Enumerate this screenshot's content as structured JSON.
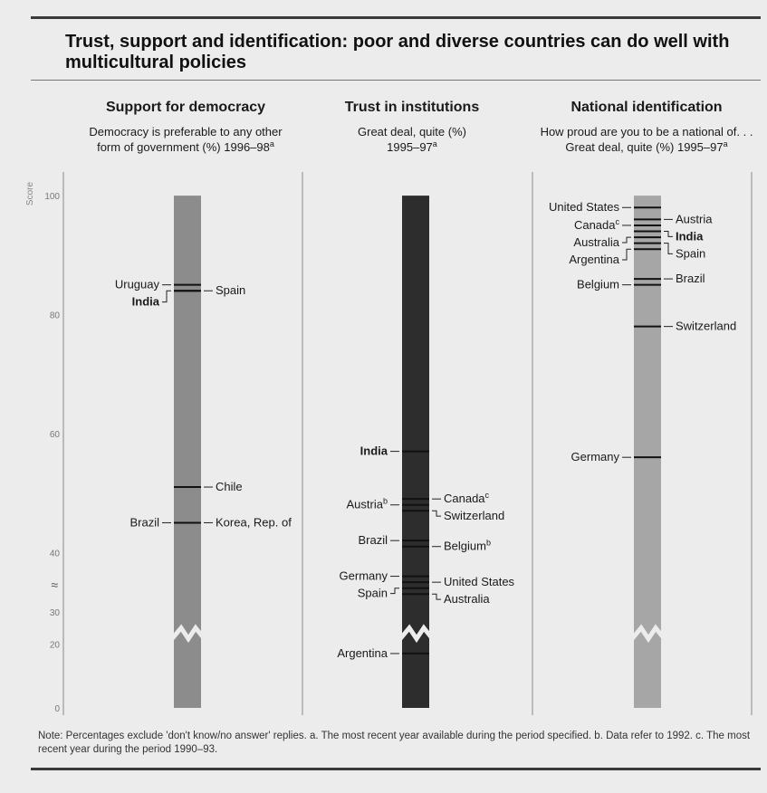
{
  "title": "Trust, support and identification: poor and diverse countries can do well with multicultural policies",
  "note": "Note: Percentages exclude 'don't know/no answer' replies. a. The most recent year available during the period specified. b. Data refer to 1992. c. The most recent year during the period 1990–93.",
  "colors": {
    "background": "#ececec",
    "rule": "#3a3a3a",
    "bar_light": "#8c8c8c",
    "bar_dark": "#2d2d2d",
    "bar_mid": "#a6a6a6",
    "marker": "#111111"
  },
  "chart_data": [
    {
      "type": "bar",
      "title": "Support for democracy",
      "subtitle": [
        "Democracy is preferable to any other",
        "form of government (%) 1996–98"
      ],
      "subtitle_sup": "a",
      "axis_label": "Score",
      "axis_ticks": [
        "100",
        "80",
        "60",
        "40",
        "30",
        "20",
        "0"
      ],
      "axis_break": true,
      "ylim": [
        0,
        100
      ],
      "points": [
        {
          "name": "Uruguay",
          "value": 85
        },
        {
          "name": "Spain",
          "value": 84
        },
        {
          "name": "India",
          "value": 84,
          "bold": true
        },
        {
          "name": "Chile",
          "value": 51
        },
        {
          "name": "Brazil",
          "value": 45
        },
        {
          "name": "Korea, Rep. of",
          "value": 45
        }
      ]
    },
    {
      "type": "bar",
      "title": "Trust in institutions",
      "subtitle": [
        "Great deal, quite (%)",
        "1995–97"
      ],
      "subtitle_sup": "a",
      "ylim": [
        0,
        100
      ],
      "axis_break": true,
      "points": [
        {
          "name": "India",
          "value": 57,
          "bold": true
        },
        {
          "name": "Canada",
          "sup": "c",
          "value": 49
        },
        {
          "name": "Austria",
          "sup": "b",
          "value": 48
        },
        {
          "name": "Switzerland",
          "value": 47
        },
        {
          "name": "Brazil",
          "value": 42
        },
        {
          "name": "Belgium",
          "sup": "b",
          "value": 41
        },
        {
          "name": "Germany",
          "value": 36
        },
        {
          "name": "United States",
          "value": 35
        },
        {
          "name": "Spain",
          "value": 34
        },
        {
          "name": "Australia",
          "value": 33
        },
        {
          "name": "Argentina",
          "value": 17
        }
      ]
    },
    {
      "type": "bar",
      "title": "National identification",
      "subtitle": [
        "How proud are you to be a national of. . .",
        "Great deal, quite (%) 1995–97"
      ],
      "subtitle_sup": "a",
      "ylim": [
        0,
        100
      ],
      "axis_break": true,
      "points": [
        {
          "name": "United States",
          "value": 98
        },
        {
          "name": "Austria",
          "value": 96
        },
        {
          "name": "Canada",
          "sup": "c",
          "value": 95
        },
        {
          "name": "India",
          "value": 94,
          "bold": true
        },
        {
          "name": "Australia",
          "value": 93
        },
        {
          "name": "Spain",
          "value": 92
        },
        {
          "name": "Argentina",
          "value": 91
        },
        {
          "name": "Brazil",
          "value": 86
        },
        {
          "name": "Belgium",
          "value": 85
        },
        {
          "name": "Switzerland",
          "value": 78
        },
        {
          "name": "Germany",
          "value": 56
        }
      ]
    }
  ]
}
